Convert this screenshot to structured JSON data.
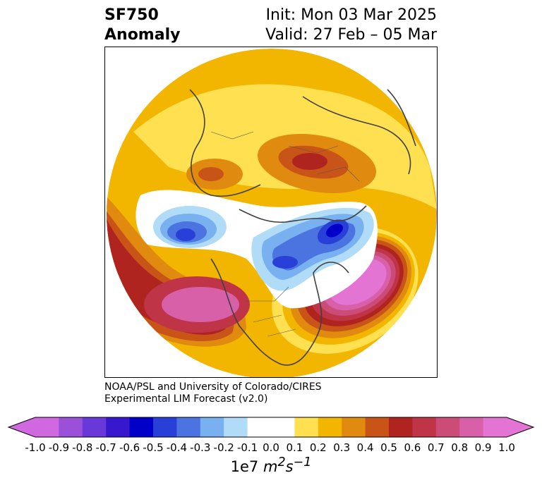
{
  "title": {
    "variable": "SF750",
    "type": "Anomaly",
    "init": "Init: Mon 03 Mar 2025",
    "valid": "Valid: 27 Feb – 05 Mar"
  },
  "credit": {
    "line1": "NOAA/PSL and University of Colorado/CIRES",
    "line2": "Experimental LIM Forecast (v2.0)"
  },
  "colorbar": {
    "ticks": [
      "-1.0",
      "-0.9",
      "-0.8",
      "-0.7",
      "-0.6",
      "-0.5",
      "-0.4",
      "-0.3",
      "-0.2",
      "-0.1",
      "0.0",
      "0.1",
      "0.2",
      "0.3",
      "0.4",
      "0.5",
      "0.6",
      "0.7",
      "0.8",
      "0.9",
      "1.0"
    ],
    "colors": [
      "#d068e0",
      "#9a50d8",
      "#6838d8",
      "#3818cc",
      "#0000c8",
      "#2840d8",
      "#4c74e0",
      "#78b0f0",
      "#b0dcf8",
      "#ffffff",
      "#ffffff",
      "#ffe050",
      "#f2b600",
      "#e08a10",
      "#c85418",
      "#b02420",
      "#c03448",
      "#cc4c78",
      "#d860a8",
      "#e474d4"
    ],
    "units_prefix": "1e7",
    "units_base": "m",
    "units_base_exp": "2",
    "units_s": "s",
    "units_s_exp": "−1"
  },
  "map": {
    "projection": "north polar stereographic",
    "features": [
      {
        "name": "north-pacific-positive-anomaly",
        "sign": "positive",
        "peak": 0.8
      },
      {
        "name": "west-atlantic-positive-anomaly",
        "sign": "positive",
        "peak": 1.0
      },
      {
        "name": "central-siberia-positive-anomaly",
        "sign": "positive",
        "peak": 0.6
      },
      {
        "name": "bering-negative-anomaly",
        "sign": "negative",
        "peak": -0.6
      },
      {
        "name": "hudson-bay-negative-anomaly",
        "sign": "negative",
        "peak": -0.6
      },
      {
        "name": "greenland-negative-anomaly",
        "sign": "negative",
        "peak": -0.7
      }
    ]
  }
}
